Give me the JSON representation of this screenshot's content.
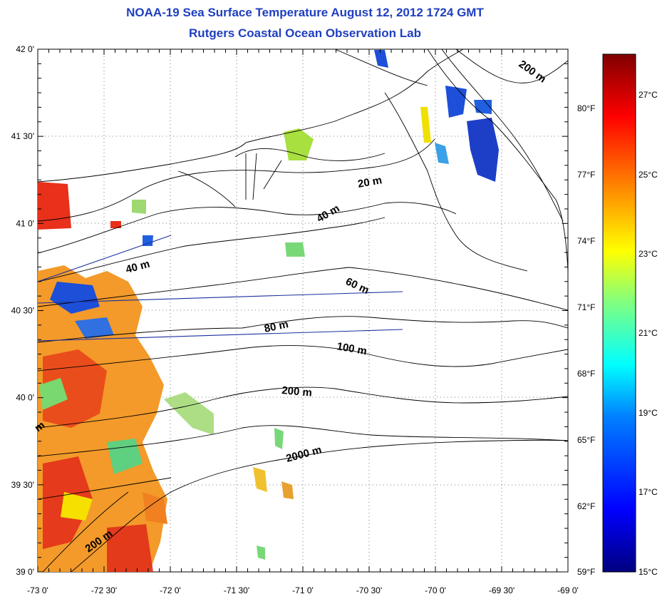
{
  "title_line1": "NOAA-19 Sea Surface Temperature August 12, 2012 1724 GMT",
  "title_line2": "Rutgers Coastal Ocean Observation Lab",
  "lon_labels": [
    "-73 0'",
    "-72 30'",
    "-72 0'",
    "-71 30'",
    "-71 0'",
    "-70 30'",
    "-70 0'",
    "-69 30'",
    "-69 0'"
  ],
  "lat_labels": [
    "42 0'",
    "41 30'",
    "41 0'",
    "40 30'",
    "40 0'",
    "39 30'",
    "39 0'"
  ],
  "fahrenheit_labels": [
    "80°F",
    "77°F",
    "74°F",
    "71°F",
    "68°F",
    "65°F",
    "62°F",
    "59°F"
  ],
  "celsius_labels": [
    "27°C",
    "25°C",
    "23°C",
    "21°C",
    "19°C",
    "17°C",
    "15°C"
  ],
  "depth_labels": [
    "20 m",
    "40 m",
    "60 m",
    "80 m",
    "100 m",
    "200 m",
    "2000 m",
    "200 m",
    "200 m",
    "40 m",
    "m"
  ],
  "colors": {
    "title": "#1f3fbf",
    "sst_warm": "#e8301a",
    "sst_mid": "#f5b300",
    "sst_cool": "#1d4fd8",
    "coast": "#000000"
  },
  "colorbar_stops": [
    "#000080",
    "#0000ff",
    "#0080ff",
    "#00ffff",
    "#80ff80",
    "#ffff00",
    "#ff8000",
    "#ff0000",
    "#800000"
  ]
}
